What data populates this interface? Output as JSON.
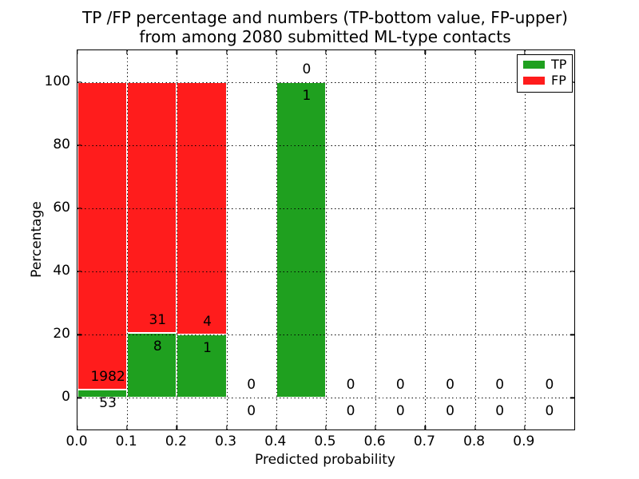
{
  "chart_data": {
    "type": "bar",
    "stacked": true,
    "title_line1": "TP /FP percentage and numbers (TP-bottom value, FP-upper)",
    "title_line2": "from among 2080 submitted ML-type contacts",
    "xlabel": "Predicted probability",
    "ylabel": "Percentage",
    "total_contacts": "2080",
    "xlim": [
      0.0,
      1.0
    ],
    "ylim": [
      -10,
      110
    ],
    "xticks": [
      0.0,
      0.1,
      0.2,
      0.3,
      0.4,
      0.5,
      0.6,
      0.7,
      0.8,
      0.9
    ],
    "yticks": [
      0,
      20,
      40,
      60,
      80,
      100
    ],
    "grid": true,
    "grid_style": "dotted",
    "bar_edge_color": "#ffffff",
    "colors": {
      "tp": "#1fa01f",
      "fp": "#ff1c1c"
    },
    "legend": {
      "position": "upper right",
      "entries": [
        {
          "label": "TP",
          "color": "#1fa01f"
        },
        {
          "label": "FP",
          "color": "#ff1c1c"
        }
      ]
    },
    "categories": [
      "0.0-0.1",
      "0.1-0.2",
      "0.2-0.3",
      "0.3-0.4",
      "0.4-0.5",
      "0.5-0.6",
      "0.6-0.7",
      "0.7-0.8",
      "0.8-0.9",
      "0.9-1.0"
    ],
    "series": [
      {
        "name": "TP",
        "counts": [
          53,
          8,
          1,
          0,
          1,
          0,
          0,
          0,
          0,
          0
        ]
      },
      {
        "name": "FP",
        "counts": [
          1982,
          31,
          4,
          0,
          0,
          0,
          0,
          0,
          0,
          0
        ]
      }
    ],
    "bins": [
      {
        "x0": 0.0,
        "x1": 0.1,
        "tp": 53,
        "fp": 1982,
        "tp_pct": 2.6,
        "fp_pct": 97.4
      },
      {
        "x0": 0.1,
        "x1": 0.2,
        "tp": 8,
        "fp": 31,
        "tp_pct": 20.51,
        "fp_pct": 79.49
      },
      {
        "x0": 0.2,
        "x1": 0.3,
        "tp": 1,
        "fp": 4,
        "tp_pct": 20.0,
        "fp_pct": 80.0
      },
      {
        "x0": 0.3,
        "x1": 0.4,
        "tp": 0,
        "fp": 0,
        "tp_pct": 0,
        "fp_pct": 0
      },
      {
        "x0": 0.4,
        "x1": 0.5,
        "tp": 1,
        "fp": 0,
        "tp_pct": 100.0,
        "fp_pct": 0
      },
      {
        "x0": 0.5,
        "x1": 0.6,
        "tp": 0,
        "fp": 0,
        "tp_pct": 0,
        "fp_pct": 0
      },
      {
        "x0": 0.6,
        "x1": 0.7,
        "tp": 0,
        "fp": 0,
        "tp_pct": 0,
        "fp_pct": 0
      },
      {
        "x0": 0.7,
        "x1": 0.8,
        "tp": 0,
        "fp": 0,
        "tp_pct": 0,
        "fp_pct": 0
      },
      {
        "x0": 0.8,
        "x1": 0.9,
        "tp": 0,
        "fp": 0,
        "tp_pct": 0,
        "fp_pct": 0
      },
      {
        "x0": 0.9,
        "x1": 1.0,
        "tp": 0,
        "fp": 0,
        "tp_pct": 0,
        "fp_pct": 0
      }
    ]
  }
}
